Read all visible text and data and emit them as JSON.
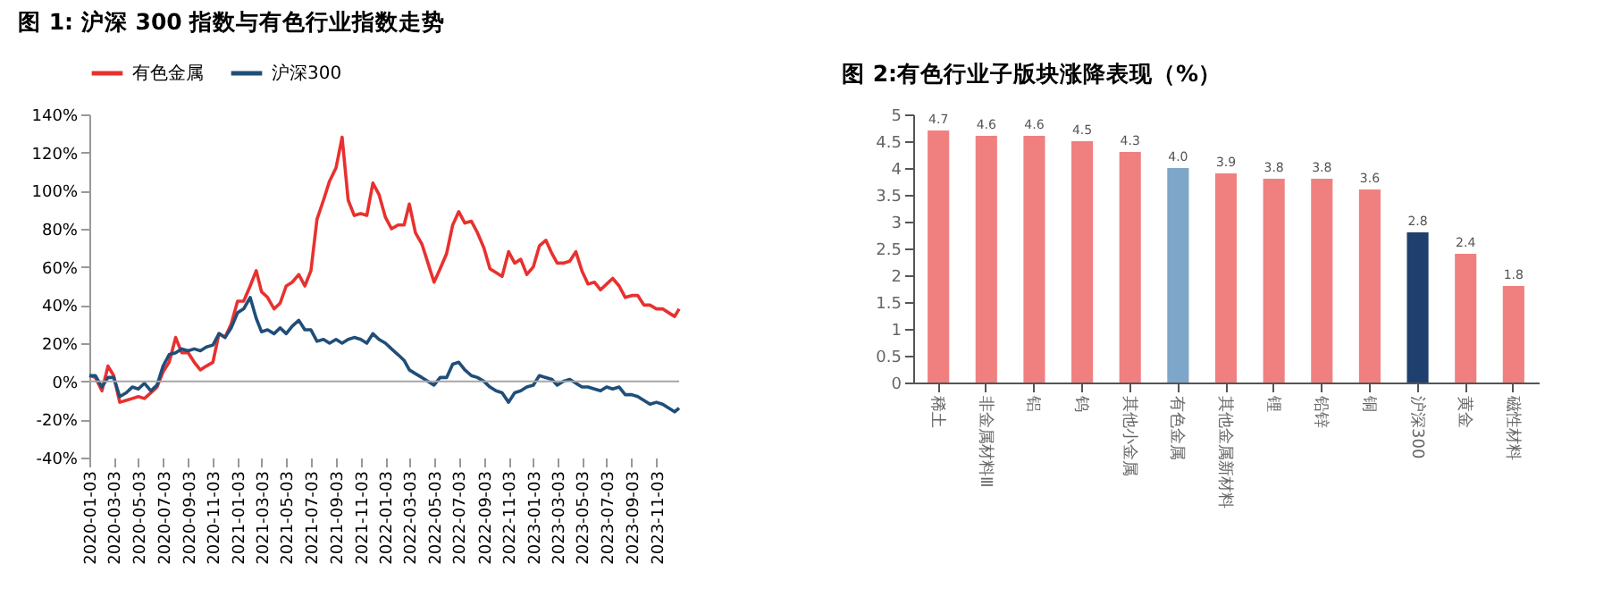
{
  "chart_data": [
    {
      "type": "line",
      "title": "图 1: 沪深 300 指数与有色行业指数走势",
      "legend": "top",
      "x": [
        "2020-01-03",
        "2020-01-18",
        "2020-02-03",
        "2020-02-18",
        "2020-03-03",
        "2020-03-18",
        "2020-04-03",
        "2020-04-18",
        "2020-05-03",
        "2020-05-18",
        "2020-06-03",
        "2020-06-18",
        "2020-07-03",
        "2020-07-18",
        "2020-08-03",
        "2020-08-18",
        "2020-09-03",
        "2020-09-18",
        "2020-10-03",
        "2020-10-18",
        "2020-11-03",
        "2020-11-18",
        "2020-12-03",
        "2020-12-18",
        "2021-01-03",
        "2021-01-18",
        "2021-02-03",
        "2021-02-18",
        "2021-03-03",
        "2021-03-18",
        "2021-04-03",
        "2021-04-18",
        "2021-05-03",
        "2021-05-18",
        "2021-06-03",
        "2021-06-18",
        "2021-07-03",
        "2021-07-18",
        "2021-08-03",
        "2021-08-18",
        "2021-09-03",
        "2021-09-18",
        "2021-10-03",
        "2021-10-18",
        "2021-11-03",
        "2021-11-18",
        "2021-12-03",
        "2021-12-18",
        "2022-01-03",
        "2022-01-18",
        "2022-02-03",
        "2022-02-18",
        "2022-03-03",
        "2022-03-18",
        "2022-04-03",
        "2022-04-18",
        "2022-05-03",
        "2022-05-18",
        "2022-06-03",
        "2022-06-18",
        "2022-07-03",
        "2022-07-18",
        "2022-08-03",
        "2022-08-18",
        "2022-09-03",
        "2022-09-18",
        "2022-10-03",
        "2022-10-18",
        "2022-11-03",
        "2022-11-18",
        "2022-12-03",
        "2022-12-18",
        "2023-01-03",
        "2023-01-18",
        "2023-02-03",
        "2023-02-18",
        "2023-03-03",
        "2023-03-18",
        "2023-04-03",
        "2023-04-18",
        "2023-05-03",
        "2023-05-18",
        "2023-06-03",
        "2023-06-18",
        "2023-07-03",
        "2023-07-18",
        "2023-08-03",
        "2023-08-18",
        "2023-09-03",
        "2023-09-18",
        "2023-10-03",
        "2023-10-18",
        "2023-11-03",
        "2023-11-18",
        "2023-12-03",
        "2023-12-18",
        "2023-12-29"
      ],
      "series": [
        {
          "name": "有色金属",
          "color": "#e8312f",
          "values": [
            3,
            2,
            -5,
            8,
            3,
            -11,
            -10,
            -9,
            -8,
            -9,
            -6,
            -3,
            5,
            10,
            23,
            15,
            15,
            10,
            6,
            8,
            10,
            25,
            23,
            30,
            42,
            42,
            50,
            58,
            47,
            44,
            38,
            41,
            50,
            52,
            56,
            50,
            58,
            85,
            95,
            105,
            112,
            128,
            95,
            87,
            88,
            87,
            104,
            98,
            86,
            80,
            82,
            82,
            93,
            78,
            72,
            62,
            52,
            59,
            67,
            82,
            89,
            83,
            84,
            78,
            70,
            59,
            57,
            55,
            68,
            62,
            64,
            56,
            60,
            71,
            74,
            67,
            62,
            62,
            63,
            68,
            58,
            51,
            52,
            48,
            51,
            54,
            50,
            44,
            45,
            45,
            40,
            40,
            38,
            38,
            36,
            34,
            38
          ]
        },
        {
          "name": "沪深300",
          "color": "#1f4e79",
          "values": [
            3,
            3,
            -3,
            2,
            2,
            -8,
            -6,
            -3,
            -4,
            -1,
            -5,
            -2,
            8,
            14,
            15,
            17,
            16,
            17,
            16,
            18,
            19,
            25,
            23,
            28,
            36,
            38,
            44,
            33,
            26,
            27,
            25,
            28,
            25,
            29,
            32,
            27,
            27,
            21,
            22,
            20,
            22,
            20,
            22,
            23,
            22,
            20,
            25,
            22,
            20,
            17,
            14,
            11,
            6,
            4,
            2,
            0,
            -2,
            2,
            2,
            9,
            10,
            6,
            3,
            2,
            0,
            -3,
            -5,
            -6,
            -11,
            -6,
            -5,
            -3,
            -2,
            3,
            2,
            1,
            -2,
            0,
            1,
            -1,
            -3,
            -3,
            -4,
            -5,
            -3,
            -4,
            -3,
            -7,
            -7,
            -8,
            -10,
            -12,
            -11,
            -12,
            -14,
            -16,
            -14
          ]
        }
      ],
      "xlim": [
        "2020-01-03",
        "2023-12-29"
      ],
      "xticks": [
        "2020-01-03",
        "2020-03-03",
        "2020-05-03",
        "2020-07-03",
        "2020-09-03",
        "2020-11-03",
        "2021-01-03",
        "2021-03-03",
        "2021-05-03",
        "2021-07-03",
        "2021-09-03",
        "2021-11-03",
        "2022-01-03",
        "2022-03-03",
        "2022-05-03",
        "2022-07-03",
        "2022-09-03",
        "2022-11-03",
        "2023-01-03",
        "2023-03-03",
        "2023-05-03",
        "2023-07-03",
        "2023-09-03",
        "2023-11-03"
      ],
      "ylim": [
        -40,
        140
      ],
      "yticks": [
        {
          "value": -40,
          "label": "-40%"
        },
        {
          "value": -20,
          "label": "-20%"
        },
        {
          "value": 0,
          "label": "0%"
        },
        {
          "value": 20,
          "label": "20%"
        },
        {
          "value": 40,
          "label": "40%"
        },
        {
          "value": 60,
          "label": "60%"
        },
        {
          "value": 80,
          "label": "80%"
        },
        {
          "value": 100,
          "label": "100%"
        },
        {
          "value": 120,
          "label": "120%"
        },
        {
          "value": 140,
          "label": "140%"
        }
      ],
      "ref_lines": [
        {
          "axis": "y",
          "value": 0,
          "color": "#a6a6a6"
        }
      ]
    },
    {
      "type": "bar",
      "title": "图 2:有色行业子版块涨降表现（%）",
      "categories": [
        "稀土",
        "非金属材料Ⅲ",
        "铝",
        "钨",
        "其他小金属",
        "有色金属",
        "其他金属新材料",
        "锂",
        "铅锌",
        "铜",
        "沪深300",
        "黄金",
        "磁性材料"
      ],
      "values": [
        4.7,
        4.6,
        4.6,
        4.5,
        4.3,
        4.0,
        3.9,
        3.8,
        3.8,
        3.6,
        2.8,
        2.4,
        1.8
      ],
      "value_labels": [
        "4.7",
        "4.6",
        "4.6",
        "4.5",
        "4.3",
        "4.0",
        "3.9",
        "3.8",
        "3.8",
        "3.6",
        "2.8",
        "2.4",
        "1.8"
      ],
      "colors": [
        "#f08080",
        "#f08080",
        "#f08080",
        "#f08080",
        "#f08080",
        "#7ea6c8",
        "#f08080",
        "#f08080",
        "#f08080",
        "#f08080",
        "#1f3f6e",
        "#f08080",
        "#f08080"
      ],
      "ylim": [
        0,
        5
      ],
      "yticks": [
        0,
        0.5,
        1,
        1.5,
        2,
        2.5,
        3,
        3.5,
        4,
        4.5,
        5
      ]
    }
  ]
}
